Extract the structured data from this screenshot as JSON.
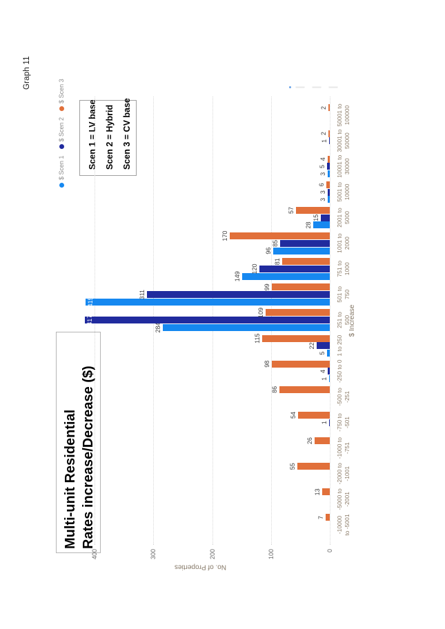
{
  "page": {
    "header": "Graph 11"
  },
  "chart": {
    "title_lines": [
      "Multi-unit Residential",
      "Rates increase/Decrease ($)"
    ],
    "annotation_lines": [
      "Scen 1 = LV base",
      "Scen 2 = Hybrid",
      "Scen 3 = CV base"
    ],
    "y_axis_title": "No. of Properties",
    "x_axis_title": "$ Increase",
    "colors": {
      "scen1": "#1688f0",
      "scen2": "#202b9e",
      "scen3": "#e1703a"
    }
  },
  "chart_data": {
    "type": "bar",
    "title": "Multi-unit Residential Rates increase/Decrease ($)",
    "xlabel": "$ Increase",
    "ylabel": "No. of Properties",
    "ylim": [
      0,
      400
    ],
    "yticks": [
      0,
      100,
      200,
      300,
      400
    ],
    "grid": "horizontal-dotted",
    "legend_position": "top-right",
    "categories": [
      "-10000 to -5001",
      "-5000 to -2001",
      "-2000 to -1001",
      "-1000 to -751",
      "-750 to -501",
      "-500 to -251",
      "-250 to 0",
      "1 to 250",
      "251 to 500",
      "501 to 750",
      "751 to 1000",
      "1001 to 2000",
      "2001 to 5000",
      "5001 to 10000",
      "10001 to 30000",
      "30001 to 50000",
      "50001 to 100000"
    ],
    "category_label_lines": [
      [
        "-10000",
        "to -5001"
      ],
      [
        "-5000 to",
        "-2001"
      ],
      [
        "-2000 to",
        "-1001"
      ],
      [
        "-1000 to",
        "-751"
      ],
      [
        "-750 to",
        "-501"
      ],
      [
        "-500 to",
        "-251"
      ],
      [
        "-250 to 0",
        ""
      ],
      [
        "1 to 250",
        ""
      ],
      [
        "251 to",
        "500"
      ],
      [
        "501 to",
        "750"
      ],
      [
        "751 to",
        "1000"
      ],
      [
        "1001 to",
        "2000"
      ],
      [
        "2001 to",
        "5000"
      ],
      [
        "5001 to",
        "10000"
      ],
      [
        "10001 to",
        "30000"
      ],
      [
        "30001 to",
        "50000"
      ],
      [
        "50001 to",
        "100000"
      ]
    ],
    "series": [
      {
        "name": "$ Scen 1",
        "color": "#1688f0",
        "values": [
          0,
          0,
          0,
          0,
          0,
          0,
          1,
          5,
          284,
          415,
          149,
          96,
          28,
          3,
          3,
          0,
          0
        ]
      },
      {
        "name": "$ Scen 2",
        "color": "#202b9e",
        "values": [
          0,
          0,
          0,
          0,
          1,
          0,
          4,
          22,
          417,
          311,
          120,
          85,
          15,
          3,
          5,
          1,
          0
        ]
      },
      {
        "name": "$ Scen 3",
        "color": "#e1703a",
        "values": [
          7,
          13,
          55,
          26,
          54,
          86,
          98,
          115,
          109,
          99,
          81,
          170,
          57,
          6,
          4,
          2,
          2
        ]
      }
    ],
    "inside_labels": [
      [
        0,
        9
      ],
      [
        1,
        8
      ]
    ]
  }
}
